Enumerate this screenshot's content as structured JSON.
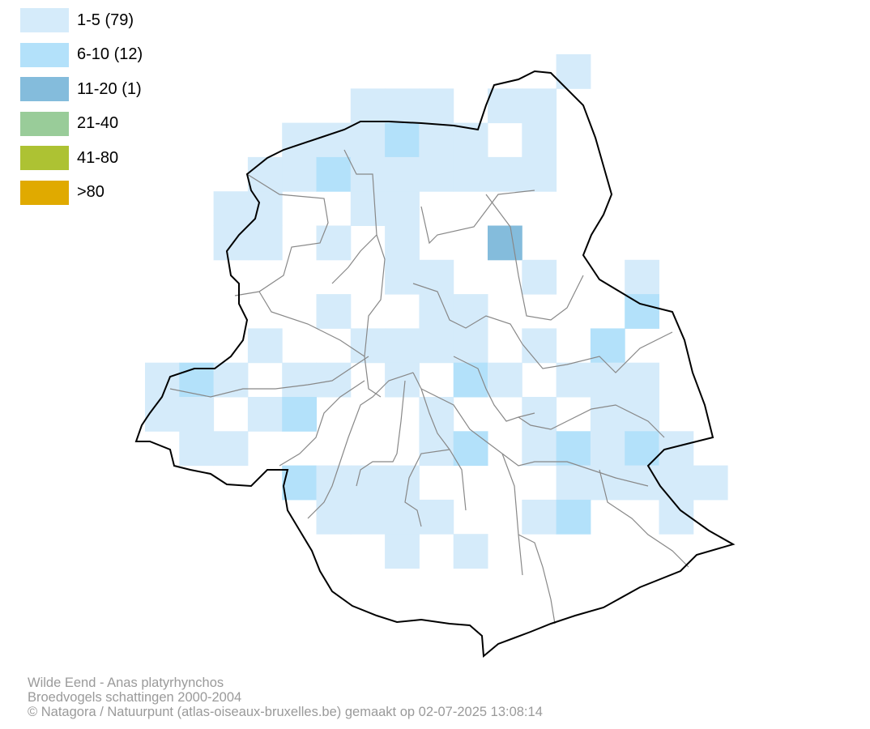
{
  "legend": {
    "items": [
      {
        "label": "1-5 (79)",
        "color": "#d5ebfa"
      },
      {
        "label": "6-10 (12)",
        "color": "#b3e1fa"
      },
      {
        "label": "11-20 (1)",
        "color": "#84bcdc"
      },
      {
        "label": "21-40",
        "color": "#99cc99"
      },
      {
        "label": "41-80",
        "color": "#adc233"
      },
      {
        "label": ">80",
        "color": "#e0aa00"
      }
    ]
  },
  "footer": {
    "species": "Wilde Eend - Anas platyrhynchos",
    "survey": "Broedvogels schattingen 2000-2004",
    "credits": "© Natagora / Natuurpunt (atlas-oiseaux-bruxelles.be) gemaakt op 02-07-2025 13:08:14"
  },
  "map": {
    "boundary_color": "#000000",
    "commune_line_color": "#888888"
  }
}
